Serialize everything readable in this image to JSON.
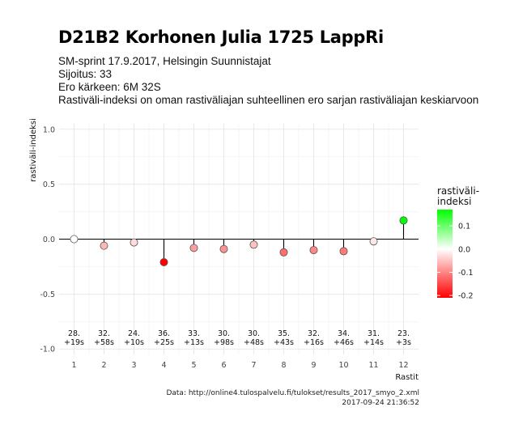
{
  "title": "D21B2 Korhonen Julia 1725 LappRi",
  "subtitle_lines": [
    "SM-sprint 17.9.2017, Helsingin Suunnistajat",
    "Sijoitus: 33",
    "Ero kärkeen: 6M 32S",
    "Rastiväli-indeksi on oman rastiväliajan suhteellinen ero sarjan rastiväliajan keskiarvoon"
  ],
  "caption_lines": [
    "Data: http://online4.tulospalvelu.fi/tulokset/results_2017_smyo_2.xml",
    "2017-09-24 21:36:52"
  ],
  "chart_data": {
    "type": "scatter",
    "style": "lollipop",
    "title": "D21B2 Korhonen Julia 1725 LappRi",
    "xlabel": "Rastit",
    "ylabel": "rastiväli-indeksi",
    "x": [
      1,
      2,
      3,
      4,
      5,
      6,
      7,
      8,
      9,
      10,
      11,
      12
    ],
    "values": [
      0.0,
      -0.06,
      -0.03,
      -0.21,
      -0.08,
      -0.09,
      -0.05,
      -0.12,
      -0.1,
      -0.11,
      -0.02,
      0.17
    ],
    "rank_labels": [
      "28.",
      "32.",
      "24.",
      "36.",
      "33.",
      "30.",
      "30.",
      "35.",
      "32.",
      "34.",
      "31.",
      "23."
    ],
    "diff_labels": [
      "+19s",
      "+58s",
      "+10s",
      "+25s",
      "+13s",
      "+98s",
      "+48s",
      "+43s",
      "+16s",
      "+46s",
      "+14s",
      "+3s"
    ],
    "xlim": [
      0.5,
      12.5
    ],
    "ylim": [
      -1.05,
      1.05
    ],
    "yticks": [
      -1.0,
      -0.5,
      0.0,
      0.5,
      1.0
    ],
    "ytick_labels": [
      "-1.0",
      "-0.5",
      "0.0",
      "0.5",
      "1.0"
    ],
    "xtick_labels": [
      "1",
      "2",
      "3",
      "4",
      "5",
      "6",
      "7",
      "8",
      "9",
      "10",
      "11",
      "12"
    ],
    "grid": true,
    "legend": {
      "title": "rastiväli-\nindeksi",
      "placement": "right",
      "min": -0.21,
      "max": 0.17,
      "ticks": [
        0.1,
        0.0,
        -0.1,
        -0.2
      ],
      "tick_labels": [
        "0.1",
        "0.0",
        "-0.1",
        "-0.2"
      ],
      "colors": {
        "low": "#ff0000",
        "mid": "#ffffff",
        "high": "#00ff00"
      }
    }
  }
}
